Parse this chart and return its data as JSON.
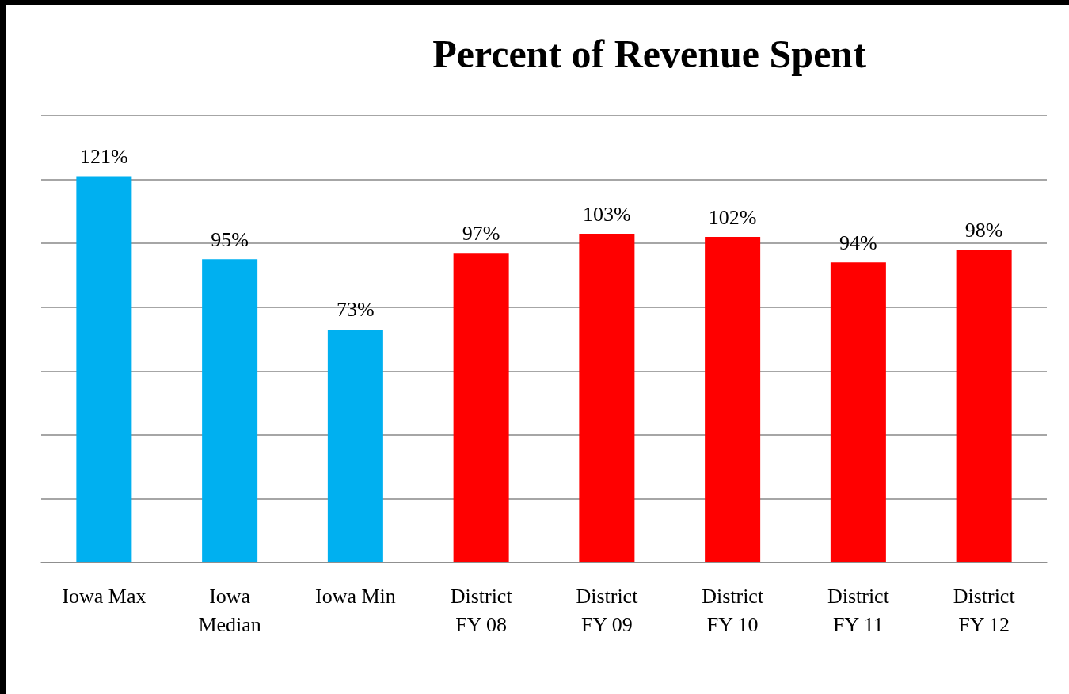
{
  "chart_data": {
    "type": "bar",
    "title": "Percent of Revenue Spent",
    "categories": [
      "Iowa Max",
      "Iowa\nMedian",
      "Iowa Min",
      "District\nFY 08",
      "District\nFY 09",
      "District\nFY 10",
      "District\nFY 11",
      "District\nFY 12"
    ],
    "values": [
      121,
      95,
      73,
      97,
      103,
      102,
      94,
      98
    ],
    "colors": [
      "#00b0f0",
      "#00b0f0",
      "#00b0f0",
      "#ff0000",
      "#ff0000",
      "#ff0000",
      "#ff0000",
      "#ff0000"
    ],
    "value_labels": [
      "121%",
      "95%",
      "73%",
      "97%",
      "103%",
      "102%",
      "94%",
      "98%"
    ],
    "ylim": [
      0,
      140
    ],
    "yticks": [
      0,
      20,
      40,
      60,
      80,
      100,
      120,
      140
    ],
    "grid": "y",
    "tick_labels": "x"
  }
}
